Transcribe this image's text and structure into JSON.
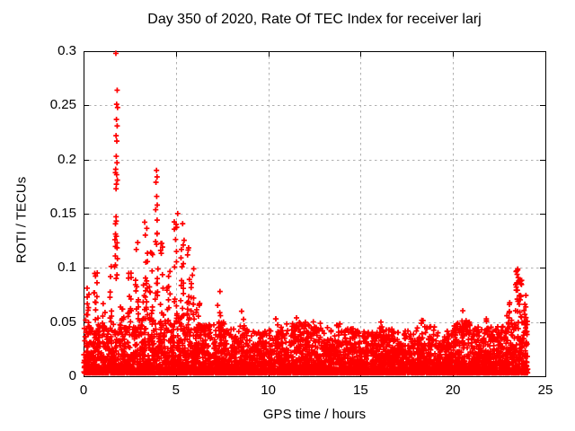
{
  "chart_data": {
    "type": "scatter",
    "title": "Day 350 of 2020, Rate Of TEC Index for receiver larj",
    "xlabel": "GPS time / hours",
    "ylabel": "ROTI / TECUs",
    "xlim": [
      0,
      25
    ],
    "ylim": [
      0,
      0.3
    ],
    "x_ticks": [
      0,
      5,
      10,
      15,
      20,
      25
    ],
    "x_tick_labels": [
      "0",
      "5",
      "10",
      "15",
      "20",
      "25"
    ],
    "y_ticks": [
      0,
      0.05,
      0.1,
      0.15,
      0.2,
      0.25,
      0.3
    ],
    "y_tick_labels": [
      "0",
      "0.05",
      "0.1",
      "0.15",
      "0.2",
      "0.25",
      "0.3"
    ],
    "grid": "dashed, at every major tick, mirrored ticks on all four borders",
    "legend": "none",
    "marker": {
      "shape": "plus",
      "size": 6,
      "color": "#ff0000"
    },
    "colors": {
      "marker": "#ff0000",
      "grid": "#b0b0b0",
      "axis": "#000000",
      "background": "#ffffff",
      "text": "#000000"
    },
    "data_time_range": [
      0,
      24.05
    ],
    "scatter": {
      "seed": 1337,
      "baseline": {
        "v_min": 0.003,
        "points_per_bin": 230,
        "power": 2.6,
        "bins": [
          {
            "t0": 0.0,
            "t1": 1.0,
            "top": 0.046
          },
          {
            "t0": 1.0,
            "t1": 2.0,
            "top": 0.048
          },
          {
            "t0": 2.0,
            "t1": 3.0,
            "top": 0.046
          },
          {
            "t0": 3.0,
            "t1": 4.0,
            "top": 0.055
          },
          {
            "t0": 4.0,
            "t1": 5.0,
            "top": 0.052
          },
          {
            "t0": 5.0,
            "t1": 6.0,
            "top": 0.058
          },
          {
            "t0": 6.0,
            "t1": 7.0,
            "top": 0.048
          },
          {
            "t0": 7.0,
            "t1": 8.0,
            "top": 0.05
          },
          {
            "t0": 8.0,
            "t1": 9.0,
            "top": 0.045
          },
          {
            "t0": 9.0,
            "t1": 10.0,
            "top": 0.042
          },
          {
            "t0": 10.0,
            "t1": 11.0,
            "top": 0.046
          },
          {
            "t0": 11.0,
            "t1": 12.0,
            "top": 0.05
          },
          {
            "t0": 12.0,
            "t1": 13.0,
            "top": 0.05
          },
          {
            "t0": 13.0,
            "t1": 14.0,
            "top": 0.046
          },
          {
            "t0": 14.0,
            "t1": 15.0,
            "top": 0.044
          },
          {
            "t0": 15.0,
            "t1": 16.0,
            "top": 0.042
          },
          {
            "t0": 16.0,
            "t1": 17.0,
            "top": 0.045
          },
          {
            "t0": 17.0,
            "t1": 18.0,
            "top": 0.042
          },
          {
            "t0": 18.0,
            "t1": 19.0,
            "top": 0.046
          },
          {
            "t0": 19.0,
            "t1": 20.0,
            "top": 0.042
          },
          {
            "t0": 20.0,
            "t1": 21.0,
            "top": 0.05
          },
          {
            "t0": 21.0,
            "t1": 22.0,
            "top": 0.046
          },
          {
            "t0": 22.0,
            "t1": 23.0,
            "top": 0.046
          },
          {
            "t0": 23.0,
            "t1": 24.05,
            "top": 0.055
          }
        ]
      },
      "clusters": [
        {
          "t": 0.2,
          "s": 0.1,
          "n": 12,
          "lo": 0.04,
          "hi": 0.085
        },
        {
          "t": 0.7,
          "s": 0.15,
          "n": 16,
          "lo": 0.04,
          "hi": 0.096
        },
        {
          "t": 1.1,
          "s": 0.08,
          "n": 8,
          "lo": 0.04,
          "hi": 0.068
        },
        {
          "t": 1.5,
          "s": 0.07,
          "n": 8,
          "lo": 0.05,
          "hi": 0.112
        },
        {
          "t": 1.78,
          "s": 0.06,
          "n": 14,
          "lo": 0.085,
          "hi": 0.19
        },
        {
          "t": 2.1,
          "s": 0.1,
          "n": 8,
          "lo": 0.04,
          "hi": 0.07
        },
        {
          "t": 2.5,
          "s": 0.1,
          "n": 12,
          "lo": 0.05,
          "hi": 0.096
        },
        {
          "t": 2.9,
          "s": 0.1,
          "n": 12,
          "lo": 0.05,
          "hi": 0.132
        },
        {
          "t": 3.35,
          "s": 0.12,
          "n": 22,
          "lo": 0.05,
          "hi": 0.148
        },
        {
          "t": 3.65,
          "s": 0.1,
          "n": 14,
          "lo": 0.05,
          "hi": 0.12
        },
        {
          "t": 3.95,
          "s": 0.08,
          "n": 14,
          "lo": 0.07,
          "hi": 0.155
        },
        {
          "t": 4.25,
          "s": 0.1,
          "n": 12,
          "lo": 0.05,
          "hi": 0.13
        },
        {
          "t": 4.6,
          "s": 0.1,
          "n": 10,
          "lo": 0.04,
          "hi": 0.1
        },
        {
          "t": 5.0,
          "s": 0.1,
          "n": 16,
          "lo": 0.05,
          "hi": 0.155
        },
        {
          "t": 5.35,
          "s": 0.1,
          "n": 16,
          "lo": 0.05,
          "hi": 0.148
        },
        {
          "t": 5.65,
          "s": 0.08,
          "n": 12,
          "lo": 0.05,
          "hi": 0.143
        },
        {
          "t": 5.9,
          "s": 0.08,
          "n": 10,
          "lo": 0.04,
          "hi": 0.1
        },
        {
          "t": 6.2,
          "s": 0.1,
          "n": 8,
          "lo": 0.035,
          "hi": 0.07
        },
        {
          "t": 7.4,
          "s": 0.15,
          "n": 10,
          "lo": 0.04,
          "hi": 0.086
        },
        {
          "t": 8.6,
          "s": 0.12,
          "n": 6,
          "lo": 0.035,
          "hi": 0.06
        },
        {
          "t": 10.45,
          "s": 0.08,
          "n": 5,
          "lo": 0.035,
          "hi": 0.057
        },
        {
          "t": 11.5,
          "s": 0.12,
          "n": 6,
          "lo": 0.035,
          "hi": 0.055
        },
        {
          "t": 12.4,
          "s": 0.15,
          "n": 6,
          "lo": 0.035,
          "hi": 0.055
        },
        {
          "t": 13.8,
          "s": 0.1,
          "n": 5,
          "lo": 0.035,
          "hi": 0.052
        },
        {
          "t": 16.1,
          "s": 0.1,
          "n": 5,
          "lo": 0.033,
          "hi": 0.05
        },
        {
          "t": 18.3,
          "s": 0.1,
          "n": 5,
          "lo": 0.034,
          "hi": 0.053
        },
        {
          "t": 20.6,
          "s": 0.12,
          "n": 9,
          "lo": 0.04,
          "hi": 0.062
        },
        {
          "t": 21.9,
          "s": 0.1,
          "n": 6,
          "lo": 0.035,
          "hi": 0.055
        },
        {
          "t": 23.0,
          "s": 0.1,
          "n": 10,
          "lo": 0.04,
          "hi": 0.068
        },
        {
          "t": 23.45,
          "s": 0.07,
          "n": 12,
          "lo": 0.055,
          "hi": 0.1
        },
        {
          "t": 23.65,
          "s": 0.07,
          "n": 14,
          "lo": 0.05,
          "hi": 0.09
        },
        {
          "t": 23.9,
          "s": 0.08,
          "n": 10,
          "lo": 0.04,
          "hi": 0.075
        }
      ],
      "outliers": [
        [
          1.75,
          0.298
        ],
        [
          1.82,
          0.264
        ],
        [
          1.79,
          0.251
        ],
        [
          1.84,
          0.248
        ],
        [
          1.78,
          0.237
        ],
        [
          1.82,
          0.231
        ],
        [
          1.76,
          0.222
        ],
        [
          1.8,
          0.217
        ],
        [
          1.77,
          0.203
        ],
        [
          1.81,
          0.197
        ],
        [
          1.74,
          0.191
        ],
        [
          1.79,
          0.186
        ],
        [
          1.83,
          0.181
        ],
        [
          1.76,
          0.173
        ],
        [
          1.7,
          0.126
        ],
        [
          1.72,
          0.111
        ],
        [
          1.68,
          0.101
        ],
        [
          3.95,
          0.19
        ],
        [
          3.98,
          0.184
        ],
        [
          3.92,
          0.179
        ],
        [
          3.96,
          0.166
        ],
        [
          3.99,
          0.158
        ],
        [
          2.45,
          0.095
        ],
        [
          23.5,
          0.098
        ],
        [
          23.47,
          0.094
        ],
        [
          23.53,
          0.091
        ]
      ]
    }
  }
}
